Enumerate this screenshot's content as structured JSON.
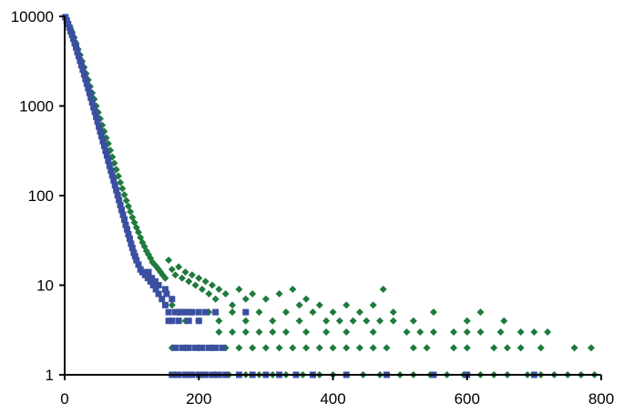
{
  "chart_data": {
    "type": "scatter",
    "title": "",
    "xlabel": "",
    "ylabel": "",
    "xlim": [
      0,
      800
    ],
    "ylim": [
      1,
      10000
    ],
    "yscale": "log",
    "grid": false,
    "legend": "none",
    "x_ticks": [
      0,
      200,
      400,
      600,
      800
    ],
    "x_tick_labels": [
      "0",
      "200",
      "400",
      "600",
      "800"
    ],
    "y_ticks": [
      1,
      10,
      100,
      1000,
      10000
    ],
    "y_tick_labels": [
      "1",
      "10",
      "100",
      "1000",
      "10000"
    ],
    "series": [
      {
        "color": "#1f7a3c",
        "marker": "diamond",
        "points": [
          [
            2,
            9500
          ],
          [
            5,
            8600
          ],
          [
            8,
            7600
          ],
          [
            11,
            6700
          ],
          [
            14,
            5800
          ],
          [
            17,
            5000
          ],
          [
            20,
            4300
          ],
          [
            23,
            3700
          ],
          [
            26,
            3150
          ],
          [
            29,
            2700
          ],
          [
            32,
            2300
          ],
          [
            35,
            1950
          ],
          [
            38,
            1650
          ],
          [
            41,
            1400
          ],
          [
            44,
            1190
          ],
          [
            47,
            1000
          ],
          [
            50,
            850
          ],
          [
            53,
            720
          ],
          [
            56,
            610
          ],
          [
            59,
            520
          ],
          [
            62,
            440
          ],
          [
            65,
            380
          ],
          [
            68,
            320
          ],
          [
            71,
            270
          ],
          [
            74,
            230
          ],
          [
            77,
            195
          ],
          [
            80,
            165
          ],
          [
            83,
            140
          ],
          [
            86,
            120
          ],
          [
            89,
            102
          ],
          [
            92,
            88
          ],
          [
            95,
            76
          ],
          [
            98,
            66
          ],
          [
            101,
            57
          ],
          [
            104,
            50
          ],
          [
            107,
            44
          ],
          [
            110,
            39
          ],
          [
            113,
            34
          ],
          [
            116,
            30
          ],
          [
            119,
            27
          ],
          [
            122,
            24
          ],
          [
            125,
            22
          ],
          [
            128,
            20
          ],
          [
            131,
            18
          ],
          [
            134,
            17
          ],
          [
            137,
            16
          ],
          [
            140,
            15
          ],
          [
            143,
            14
          ],
          [
            146,
            13
          ],
          [
            150,
            12
          ],
          [
            155,
            19
          ],
          [
            160,
            15
          ],
          [
            165,
            13
          ],
          [
            170,
            16
          ],
          [
            175,
            12
          ],
          [
            180,
            14
          ],
          [
            185,
            11
          ],
          [
            190,
            13
          ],
          [
            195,
            10
          ],
          [
            200,
            12
          ],
          [
            205,
            9
          ],
          [
            210,
            11
          ],
          [
            215,
            8
          ],
          [
            220,
            10
          ],
          [
            225,
            7
          ],
          [
            230,
            9
          ],
          [
            240,
            8
          ],
          [
            250,
            6
          ],
          [
            260,
            9
          ],
          [
            270,
            7
          ],
          [
            280,
            8
          ],
          [
            300,
            7
          ],
          [
            320,
            8
          ],
          [
            340,
            9
          ],
          [
            350,
            6
          ],
          [
            360,
            7
          ],
          [
            380,
            6
          ],
          [
            400,
            5
          ],
          [
            420,
            6
          ],
          [
            440,
            5
          ],
          [
            460,
            6
          ],
          [
            475,
            9
          ],
          [
            490,
            5
          ],
          [
            520,
            4
          ],
          [
            550,
            5
          ],
          [
            600,
            4
          ],
          [
            620,
            5
          ],
          [
            655,
            4
          ],
          [
            160,
            6
          ],
          [
            170,
            5
          ],
          [
            180,
            4
          ],
          [
            190,
            5
          ],
          [
            200,
            4
          ],
          [
            215,
            5
          ],
          [
            230,
            4
          ],
          [
            250,
            5
          ],
          [
            270,
            4
          ],
          [
            290,
            5
          ],
          [
            310,
            4
          ],
          [
            330,
            5
          ],
          [
            350,
            4
          ],
          [
            370,
            5
          ],
          [
            390,
            4
          ],
          [
            410,
            4
          ],
          [
            430,
            4
          ],
          [
            450,
            4
          ],
          [
            470,
            4
          ],
          [
            490,
            4
          ],
          [
            510,
            3
          ],
          [
            530,
            3
          ],
          [
            550,
            3
          ],
          [
            580,
            3
          ],
          [
            600,
            3
          ],
          [
            620,
            3
          ],
          [
            650,
            3
          ],
          [
            680,
            3
          ],
          [
            700,
            3
          ],
          [
            720,
            3
          ],
          [
            230,
            3
          ],
          [
            250,
            3
          ],
          [
            270,
            3
          ],
          [
            290,
            3
          ],
          [
            310,
            3
          ],
          [
            330,
            3
          ],
          [
            360,
            3
          ],
          [
            390,
            3
          ],
          [
            420,
            3
          ],
          [
            460,
            3
          ],
          [
            160,
            2
          ],
          [
            180,
            2
          ],
          [
            200,
            2
          ],
          [
            220,
            2
          ],
          [
            240,
            2
          ],
          [
            260,
            2
          ],
          [
            280,
            2
          ],
          [
            300,
            2
          ],
          [
            320,
            2
          ],
          [
            340,
            2
          ],
          [
            360,
            2
          ],
          [
            380,
            2
          ],
          [
            400,
            2
          ],
          [
            420,
            2
          ],
          [
            440,
            2
          ],
          [
            460,
            2
          ],
          [
            480,
            2
          ],
          [
            520,
            2
          ],
          [
            540,
            2
          ],
          [
            580,
            2
          ],
          [
            600,
            2
          ],
          [
            640,
            2
          ],
          [
            660,
            2
          ],
          [
            680,
            2
          ],
          [
            710,
            2
          ],
          [
            760,
            2
          ],
          [
            785,
            2
          ],
          [
            165,
            1
          ],
          [
            185,
            1
          ],
          [
            205,
            1
          ],
          [
            225,
            1
          ],
          [
            245,
            1
          ],
          [
            270,
            1
          ],
          [
            290,
            1
          ],
          [
            310,
            1
          ],
          [
            330,
            1
          ],
          [
            355,
            1
          ],
          [
            380,
            1
          ],
          [
            400,
            1
          ],
          [
            420,
            1
          ],
          [
            445,
            1
          ],
          [
            470,
            1
          ],
          [
            500,
            1
          ],
          [
            520,
            1
          ],
          [
            545,
            1
          ],
          [
            570,
            1
          ],
          [
            595,
            1
          ],
          [
            620,
            1
          ],
          [
            640,
            1
          ],
          [
            660,
            1
          ],
          [
            690,
            1
          ],
          [
            710,
            1
          ],
          [
            730,
            1
          ],
          [
            750,
            1
          ],
          [
            770,
            1
          ],
          [
            790,
            1
          ]
        ]
      },
      {
        "color": "#3a4fa0",
        "marker": "square",
        "points": [
          [
            1,
            9800
          ],
          [
            3,
            9000
          ],
          [
            5,
            8200
          ],
          [
            7,
            7500
          ],
          [
            9,
            6800
          ],
          [
            11,
            6200
          ],
          [
            13,
            5600
          ],
          [
            15,
            5000
          ],
          [
            17,
            4500
          ],
          [
            19,
            4000
          ],
          [
            21,
            3600
          ],
          [
            23,
            3200
          ],
          [
            25,
            2850
          ],
          [
            27,
            2550
          ],
          [
            29,
            2250
          ],
          [
            31,
            2000
          ],
          [
            33,
            1780
          ],
          [
            35,
            1580
          ],
          [
            37,
            1400
          ],
          [
            39,
            1240
          ],
          [
            41,
            1100
          ],
          [
            43,
            970
          ],
          [
            45,
            860
          ],
          [
            47,
            760
          ],
          [
            49,
            670
          ],
          [
            51,
            590
          ],
          [
            53,
            520
          ],
          [
            55,
            460
          ],
          [
            57,
            405
          ],
          [
            59,
            360
          ],
          [
            61,
            315
          ],
          [
            63,
            280
          ],
          [
            65,
            245
          ],
          [
            67,
            215
          ],
          [
            69,
            190
          ],
          [
            71,
            168
          ],
          [
            73,
            148
          ],
          [
            75,
            130
          ],
          [
            77,
            115
          ],
          [
            79,
            101
          ],
          [
            81,
            89
          ],
          [
            83,
            78
          ],
          [
            85,
            69
          ],
          [
            87,
            61
          ],
          [
            89,
            54
          ],
          [
            91,
            47
          ],
          [
            93,
            42
          ],
          [
            95,
            37
          ],
          [
            97,
            33
          ],
          [
            99,
            29
          ],
          [
            101,
            26
          ],
          [
            103,
            23
          ],
          [
            105,
            21
          ],
          [
            107,
            19
          ],
          [
            110,
            17
          ],
          [
            113,
            15
          ],
          [
            116,
            14
          ],
          [
            120,
            13
          ],
          [
            124,
            12
          ],
          [
            128,
            11
          ],
          [
            132,
            10
          ],
          [
            136,
            9
          ],
          [
            140,
            8
          ],
          [
            145,
            7
          ],
          [
            150,
            6
          ],
          [
            155,
            5
          ],
          [
            160,
            4
          ],
          [
            125,
            14
          ],
          [
            130,
            12
          ],
          [
            135,
            11
          ],
          [
            140,
            10
          ],
          [
            150,
            9
          ],
          [
            152,
            8
          ],
          [
            160,
            7
          ],
          [
            165,
            5
          ],
          [
            170,
            5
          ],
          [
            175,
            5
          ],
          [
            180,
            5
          ],
          [
            185,
            5
          ],
          [
            190,
            5
          ],
          [
            200,
            5
          ],
          [
            210,
            5
          ],
          [
            225,
            5
          ],
          [
            270,
            5
          ],
          [
            155,
            4
          ],
          [
            170,
            4
          ],
          [
            185,
            4
          ],
          [
            200,
            4
          ],
          [
            165,
            2
          ],
          [
            175,
            2
          ],
          [
            185,
            2
          ],
          [
            195,
            2
          ],
          [
            205,
            2
          ],
          [
            215,
            2
          ],
          [
            225,
            2
          ],
          [
            235,
            2
          ],
          [
            160,
            1
          ],
          [
            170,
            1
          ],
          [
            180,
            1
          ],
          [
            190,
            1
          ],
          [
            200,
            1
          ],
          [
            210,
            1
          ],
          [
            220,
            1
          ],
          [
            230,
            1
          ],
          [
            240,
            1
          ],
          [
            260,
            1
          ],
          [
            280,
            1
          ],
          [
            300,
            1
          ],
          [
            320,
            1
          ],
          [
            345,
            1
          ],
          [
            370,
            1
          ],
          [
            420,
            1
          ],
          [
            480,
            1
          ],
          [
            550,
            1
          ],
          [
            600,
            1
          ],
          [
            700,
            1
          ]
        ]
      }
    ]
  }
}
